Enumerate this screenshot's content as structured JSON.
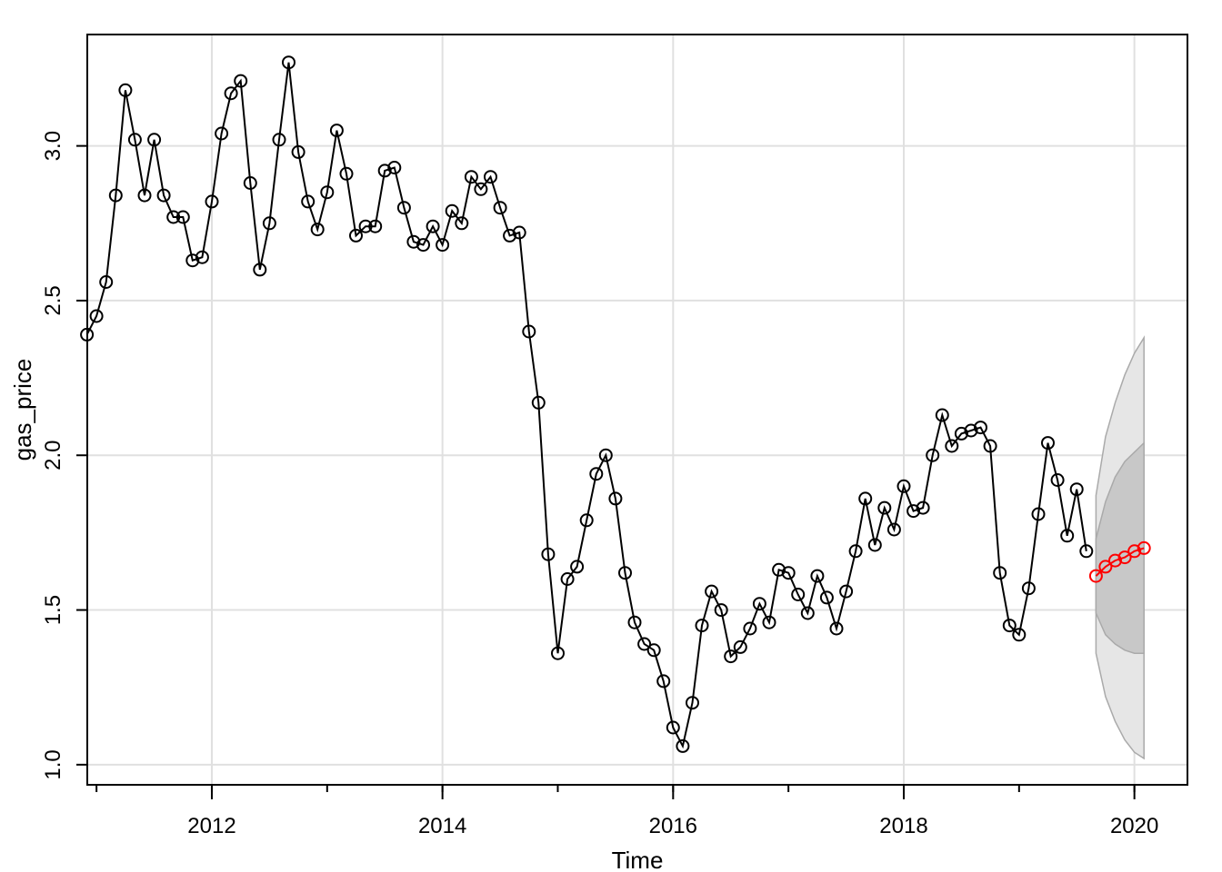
{
  "chart_data": {
    "type": "line",
    "xlabel": "Time",
    "ylabel": "gas_price",
    "xlim": [
      2010.92,
      2020.46
    ],
    "ylim": [
      0.935,
      3.36
    ],
    "x_ticks": [
      {
        "value": 2012,
        "label": "2012"
      },
      {
        "value": 2014,
        "label": "2014"
      },
      {
        "value": 2016,
        "label": "2016"
      },
      {
        "value": 2018,
        "label": "2018"
      },
      {
        "value": 2020,
        "label": "2020"
      }
    ],
    "y_ticks": [
      {
        "value": 1.0,
        "label": "1.0"
      },
      {
        "value": 1.5,
        "label": "1.5"
      },
      {
        "value": 2.0,
        "label": "2.0"
      },
      {
        "value": 2.5,
        "label": "2.5"
      },
      {
        "value": 3.0,
        "label": "3.0"
      }
    ],
    "grid": true,
    "start_year": 2010,
    "start_month": 12,
    "observed": {
      "marker": "open-circle",
      "color": "#000000",
      "values": [
        2.39,
        2.45,
        2.56,
        2.84,
        3.18,
        3.02,
        2.84,
        3.02,
        2.84,
        2.77,
        2.77,
        2.63,
        2.64,
        2.82,
        3.04,
        3.17,
        3.21,
        2.88,
        2.6,
        2.75,
        3.02,
        3.27,
        2.98,
        2.82,
        2.73,
        2.85,
        3.05,
        2.91,
        2.71,
        2.74,
        2.74,
        2.92,
        2.93,
        2.8,
        2.69,
        2.68,
        2.74,
        2.68,
        2.79,
        2.75,
        2.9,
        2.86,
        2.9,
        2.8,
        2.71,
        2.72,
        2.4,
        2.17,
        1.68,
        1.36,
        1.6,
        1.64,
        1.79,
        1.94,
        2.0,
        1.86,
        1.62,
        1.46,
        1.39,
        1.37,
        1.27,
        1.12,
        1.06,
        1.2,
        1.45,
        1.56,
        1.5,
        1.35,
        1.38,
        1.44,
        1.52,
        1.46,
        1.63,
        1.62,
        1.55,
        1.49,
        1.61,
        1.54,
        1.44,
        1.56,
        1.69,
        1.86,
        1.71,
        1.83,
        1.76,
        1.9,
        1.82,
        1.83,
        2.0,
        2.13,
        2.03,
        2.07,
        2.08,
        2.09,
        2.03,
        1.62,
        1.45,
        1.42,
        1.57,
        1.81,
        2.04,
        1.92,
        1.74,
        1.89,
        1.69
      ]
    },
    "forecast": {
      "marker": "open-circle",
      "color": "#ff0000",
      "start_year": 2019,
      "start_month": 9,
      "values": [
        1.61,
        1.64,
        1.66,
        1.67,
        1.69,
        1.7
      ],
      "band_80": {
        "lower": [
          1.49,
          1.42,
          1.39,
          1.37,
          1.36,
          1.36
        ],
        "upper": [
          1.73,
          1.85,
          1.93,
          1.98,
          2.01,
          2.04
        ],
        "color": "#c8c8c8"
      },
      "band_95": {
        "lower": [
          1.36,
          1.22,
          1.14,
          1.08,
          1.04,
          1.02
        ],
        "upper": [
          1.87,
          2.06,
          2.17,
          2.26,
          2.33,
          2.38
        ],
        "color": "#e6e6e6"
      }
    }
  }
}
